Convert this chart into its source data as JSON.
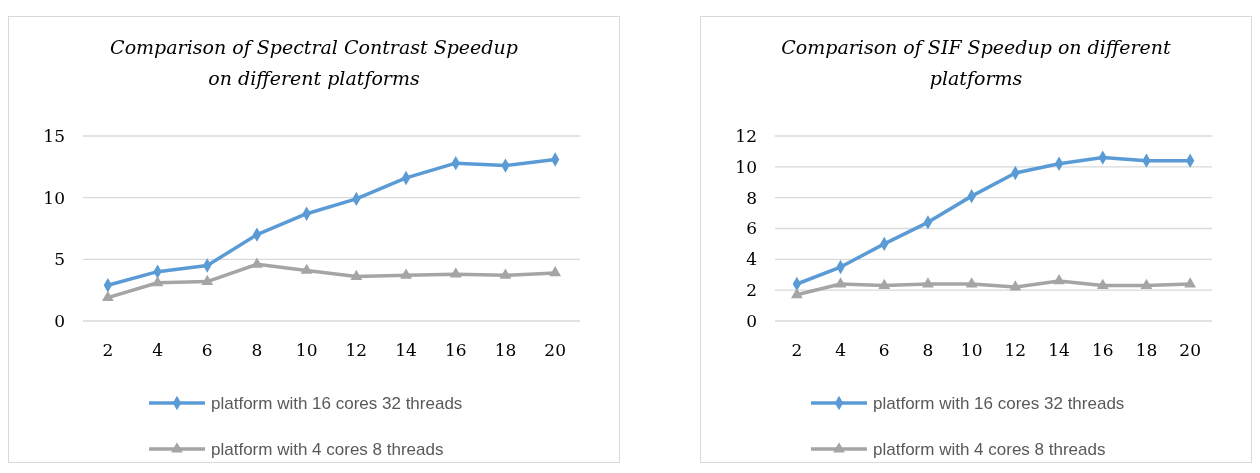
{
  "chart_data": [
    {
      "type": "line",
      "title": "Comparison of Spectral Contrast Speedup on different platforms",
      "categories": [
        "2",
        "4",
        "6",
        "8",
        "10",
        "12",
        "14",
        "16",
        "18",
        "20"
      ],
      "ylim": [
        0,
        15
      ],
      "yticks": [
        0,
        5,
        10,
        15
      ],
      "grid": "y",
      "legend": "bottom",
      "series": [
        {
          "name": "platform with 16 cores 32 threads",
          "color": "#5b9bd5",
          "marker": "diamond",
          "values": [
            2.9,
            4.0,
            4.5,
            7.0,
            8.7,
            9.9,
            11.6,
            12.8,
            12.6,
            13.1
          ]
        },
        {
          "name": "platform with 4 cores 8 threads",
          "color": "#a5a5a5",
          "marker": "triangle",
          "values": [
            1.9,
            3.1,
            3.2,
            4.6,
            4.1,
            3.6,
            3.7,
            3.8,
            3.7,
            3.9
          ]
        }
      ]
    },
    {
      "type": "line",
      "title": "Comparison of SIF Speedup on different platforms",
      "categories": [
        "2",
        "4",
        "6",
        "8",
        "10",
        "12",
        "14",
        "16",
        "18",
        "20"
      ],
      "ylim": [
        0,
        12
      ],
      "yticks": [
        0,
        2,
        4,
        6,
        8,
        10,
        12
      ],
      "grid": "y",
      "legend": "bottom",
      "series": [
        {
          "name": "platform with 16 cores 32 threads",
          "color": "#5b9bd5",
          "marker": "diamond",
          "values": [
            2.4,
            3.5,
            5.0,
            6.4,
            8.1,
            9.6,
            10.2,
            10.6,
            10.4,
            10.4
          ]
        },
        {
          "name": "platform with 4 cores 8 threads",
          "color": "#a5a5a5",
          "marker": "triangle",
          "values": [
            1.7,
            2.4,
            2.3,
            2.4,
            2.4,
            2.2,
            2.6,
            2.3,
            2.3,
            2.4
          ]
        }
      ]
    }
  ]
}
